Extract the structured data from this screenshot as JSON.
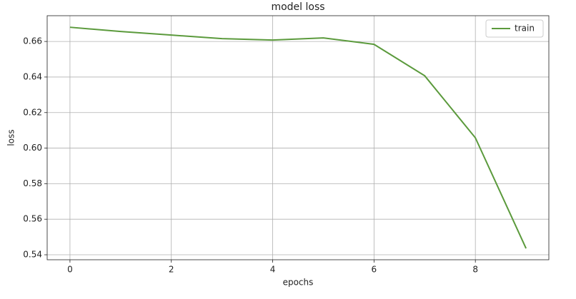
{
  "chart_data": {
    "type": "line",
    "title": "model loss",
    "x_label": "epochs",
    "y_label": "loss",
    "x": [
      0,
      1,
      2,
      3,
      4,
      5,
      6,
      7,
      8,
      9
    ],
    "series": [
      {
        "name": "train",
        "color": "#5b9a3c",
        "values": [
          0.668,
          0.6656,
          0.6636,
          0.6616,
          0.6608,
          0.662,
          0.6584,
          0.6407,
          0.6058,
          0.5436
        ]
      }
    ],
    "xlim": [
      -0.45,
      9.45
    ],
    "xticks": [
      0,
      2,
      4,
      6,
      8
    ],
    "ylim": [
      0.5372,
      0.6745
    ],
    "yticks": [
      {
        "value": 0.54,
        "label": "0.54"
      },
      {
        "value": 0.56,
        "label": "0.56"
      },
      {
        "value": 0.58,
        "label": "0.58"
      },
      {
        "value": 0.6,
        "label": "0.60"
      },
      {
        "value": 0.62,
        "label": "0.62"
      },
      {
        "value": 0.64,
        "label": "0.64"
      },
      {
        "value": 0.66,
        "label": "0.66"
      }
    ],
    "grid": true,
    "legend": "upper right"
  }
}
